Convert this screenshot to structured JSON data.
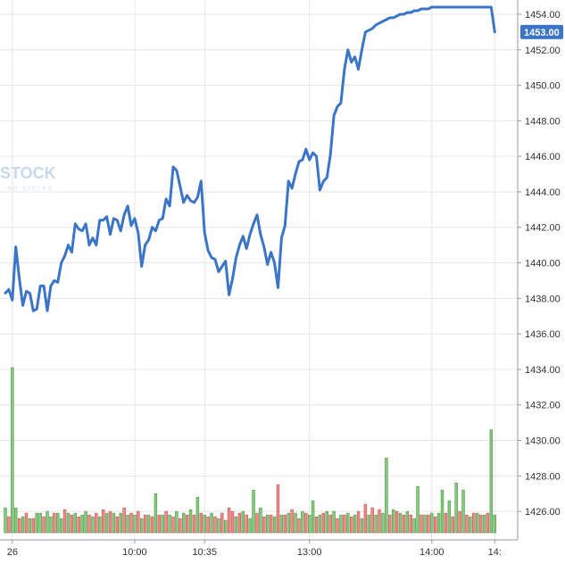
{
  "watermark": {
    "brand": "STOCK",
    "tagline": "ah stocks"
  },
  "colors": {
    "price_line": "#3a75c8",
    "volume_up": "#86c97c",
    "volume_up_edge": "#4c9a46",
    "volume_down": "#ef8a8a",
    "volume_down_edge": "#c84e4e",
    "grid": "#e6e6e6",
    "axis_text": "#333333",
    "price_tag_bg": "#3a75c8",
    "price_tag_text": "#ffffff"
  },
  "chart_data": {
    "type": "line",
    "title": "",
    "xlabel": "",
    "ylabel": "",
    "ylim": [
      1424.8,
      1454.4
    ],
    "grid": true,
    "price_axis_side": "right",
    "y_ticks": [
      "1454.00",
      "1452.00",
      "1450.00",
      "1448.00",
      "1446.00",
      "1444.00",
      "1442.00",
      "1440.00",
      "1438.00",
      "1436.00",
      "1434.00",
      "1432.00",
      "1430.00",
      "1428.00",
      "1426.00"
    ],
    "x_ticks": [
      {
        "label": "26",
        "x": 0
      },
      {
        "label": "10:00",
        "x": 35
      },
      {
        "label": "10:35",
        "x": 55
      },
      {
        "label": "13:00",
        "x": 85
      },
      {
        "label": "14:00",
        "x": 120
      },
      {
        "label": "14:",
        "x": 138
      }
    ],
    "x_range": [
      -2,
      141
    ],
    "current_price": "1453.00",
    "series": [
      {
        "type": "line",
        "x": [
          -2,
          -1,
          0,
          1,
          2,
          3,
          4,
          5,
          6,
          7,
          8,
          9,
          10,
          11,
          12,
          13,
          14,
          15,
          16,
          17,
          18,
          19,
          20,
          21,
          22,
          23,
          24,
          25,
          26,
          27,
          28,
          29,
          30,
          31,
          32,
          33,
          34,
          35,
          36,
          37,
          38,
          39,
          40,
          41,
          42,
          43,
          44,
          45,
          46,
          47,
          48,
          49,
          50,
          51,
          52,
          53,
          54,
          55,
          56,
          57,
          58,
          59,
          60,
          61,
          62,
          63,
          64,
          65,
          66,
          67,
          68,
          69,
          70,
          71,
          72,
          73,
          74,
          75,
          76,
          77,
          78,
          79,
          80,
          81,
          82,
          83,
          84,
          85,
          86,
          87,
          88,
          89,
          90,
          91,
          92,
          93,
          94,
          95,
          96,
          97,
          98,
          99,
          100,
          101,
          102,
          103,
          104,
          105,
          106,
          107,
          108,
          109,
          110,
          111,
          112,
          113,
          114,
          115,
          116,
          117,
          118,
          119,
          120,
          121,
          122,
          123,
          124,
          125,
          126,
          127,
          128,
          129,
          130,
          131,
          132,
          133,
          134,
          135,
          136,
          137,
          138
        ],
        "values": [
          1438.3,
          1438.5,
          1437.9,
          1440.9,
          1439.1,
          1437.6,
          1438.4,
          1438.3,
          1437.3,
          1437.4,
          1438.7,
          1438.7,
          1437.3,
          1438.7,
          1439.0,
          1438.9,
          1440.0,
          1440.4,
          1441.0,
          1440.6,
          1442.2,
          1441.9,
          1441.8,
          1442.2,
          1441.0,
          1441.4,
          1441.0,
          1442.4,
          1442.4,
          1442.6,
          1441.6,
          1442.5,
          1442.4,
          1441.8,
          1442.7,
          1443.2,
          1442.1,
          1442.5,
          1441.7,
          1439.8,
          1441.0,
          1441.3,
          1442.0,
          1441.8,
          1442.4,
          1442.5,
          1443.6,
          1443.2,
          1445.4,
          1445.2,
          1444.3,
          1443.4,
          1443.8,
          1443.5,
          1443.4,
          1443.7,
          1444.6,
          1441.7,
          1440.7,
          1440.3,
          1440.2,
          1439.5,
          1439.8,
          1440.1,
          1438.2,
          1439.1,
          1440.3,
          1441.0,
          1441.5,
          1440.8,
          1441.6,
          1442.2,
          1442.7,
          1441.6,
          1440.9,
          1439.9,
          1440.6,
          1440.0,
          1438.6,
          1441.4,
          1442.1,
          1444.6,
          1444.2,
          1445.0,
          1445.7,
          1445.8,
          1446.4,
          1445.8,
          1446.2,
          1446.0,
          1444.1,
          1444.6,
          1444.8,
          1446.1,
          1448.3,
          1448.8,
          1449.0,
          1450.9,
          1452.0,
          1451.3,
          1451.6,
          1450.9,
          1452.0,
          1453.0,
          1453.1,
          1453.2,
          1453.4,
          1453.5,
          1453.6,
          1453.7,
          1453.8,
          1453.8,
          1453.9,
          1454.0,
          1454.0,
          1454.1,
          1454.1,
          1454.2,
          1454.2,
          1454.3,
          1454.3,
          1454.3,
          1454.4,
          1454.4,
          1454.4,
          1454.4,
          1454.4,
          1454.4,
          1454.4,
          1454.4,
          1454.4,
          1454.4,
          1454.4,
          1454.4,
          1454.4,
          1454.4,
          1454.4,
          1454.4,
          1454.4,
          1454.4,
          1453.0
        ]
      },
      {
        "type": "bar",
        "x": [
          -2,
          -1,
          0,
          1,
          2,
          3,
          4,
          5,
          6,
          7,
          8,
          9,
          10,
          11,
          12,
          13,
          14,
          15,
          16,
          17,
          18,
          19,
          20,
          21,
          22,
          23,
          24,
          25,
          26,
          27,
          28,
          29,
          30,
          31,
          32,
          33,
          34,
          35,
          36,
          37,
          38,
          39,
          40,
          41,
          42,
          43,
          44,
          45,
          46,
          47,
          48,
          49,
          50,
          51,
          52,
          53,
          54,
          55,
          56,
          57,
          58,
          59,
          60,
          61,
          62,
          63,
          64,
          65,
          66,
          67,
          68,
          69,
          70,
          71,
          72,
          73,
          74,
          75,
          76,
          77,
          78,
          79,
          80,
          81,
          82,
          83,
          84,
          85,
          86,
          87,
          88,
          89,
          90,
          91,
          92,
          93,
          94,
          95,
          96,
          97,
          98,
          99,
          100,
          101,
          102,
          103,
          104,
          105,
          106,
          107,
          108,
          109,
          110,
          111,
          112,
          113,
          114,
          115,
          116,
          117,
          118,
          119,
          120,
          121,
          122,
          123,
          124,
          125,
          126,
          127,
          128,
          129,
          130,
          131,
          132,
          133,
          134,
          135,
          136,
          137,
          138
        ],
        "values": [
          1426.2,
          1425.7,
          1434.1,
          1426.2,
          1425.6,
          1425.7,
          1425.9,
          1425.6,
          1425.6,
          1425.9,
          1425.9,
          1425.7,
          1426.0,
          1425.7,
          1425.9,
          1425.9,
          1425.6,
          1426.1,
          1425.9,
          1425.8,
          1425.9,
          1425.7,
          1425.8,
          1426.0,
          1425.8,
          1425.7,
          1425.9,
          1425.7,
          1426.1,
          1425.9,
          1426.0,
          1425.9,
          1425.7,
          1425.9,
          1426.2,
          1425.8,
          1425.9,
          1425.8,
          1426.0,
          1425.6,
          1425.8,
          1425.8,
          1425.7,
          1427.0,
          1425.8,
          1425.8,
          1426.0,
          1425.8,
          1425.7,
          1426.0,
          1425.6,
          1425.9,
          1425.8,
          1426.1,
          1425.8,
          1426.8,
          1425.9,
          1425.8,
          1425.7,
          1425.9,
          1425.7,
          1425.6,
          1425.9,
          1425.5,
          1426.2,
          1426.0,
          1425.7,
          1425.9,
          1426.0,
          1425.8,
          1425.6,
          1427.2,
          1425.9,
          1426.2,
          1425.7,
          1425.8,
          1425.8,
          1425.7,
          1427.5,
          1425.8,
          1425.8,
          1425.9,
          1426.1,
          1425.9,
          1425.6,
          1426.0,
          1425.9,
          1425.8,
          1426.6,
          1425.7,
          1425.8,
          1425.9,
          1426.0,
          1425.8,
          1426.0,
          1425.6,
          1425.8,
          1425.8,
          1425.9,
          1425.7,
          1425.8,
          1426.0,
          1425.6,
          1426.4,
          1425.8,
          1426.2,
          1425.8,
          1426.1,
          1425.9,
          1429.0,
          1425.8,
          1426.1,
          1426.0,
          1425.9,
          1425.8,
          1426.0,
          1425.8,
          1425.6,
          1427.4,
          1425.8,
          1425.8,
          1425.8,
          1425.9,
          1425.7,
          1425.9,
          1427.2,
          1425.9,
          1426.6,
          1425.7,
          1427.6,
          1426.0,
          1427.2,
          1425.8,
          1425.7,
          1425.9,
          1425.9,
          1425.8,
          1425.8,
          1425.9,
          1430.6,
          1425.8
        ],
        "direction": [
          "up",
          "down",
          "up",
          "up",
          "down",
          "up",
          "down",
          "up",
          "down",
          "up",
          "up",
          "down",
          "up",
          "up",
          "down",
          "up",
          "up",
          "down",
          "up",
          "down",
          "up",
          "down",
          "up",
          "up",
          "down",
          "up",
          "down",
          "up",
          "down",
          "up",
          "down",
          "up",
          "down",
          "up",
          "down",
          "up",
          "down",
          "up",
          "down",
          "up",
          "down",
          "up",
          "down",
          "up",
          "down",
          "up",
          "down",
          "up",
          "down",
          "up",
          "down",
          "up",
          "down",
          "up",
          "down",
          "up",
          "down",
          "up",
          "down",
          "up",
          "down",
          "up",
          "down",
          "up",
          "down",
          "down",
          "up",
          "down",
          "up",
          "down",
          "up",
          "up",
          "down",
          "up",
          "down",
          "up",
          "down",
          "up",
          "down",
          "up",
          "down",
          "up",
          "down",
          "up",
          "down",
          "up",
          "down",
          "up",
          "up",
          "down",
          "up",
          "down",
          "up",
          "down",
          "up",
          "down",
          "up",
          "down",
          "up",
          "down",
          "up",
          "down",
          "up",
          "down",
          "up",
          "down",
          "up",
          "down",
          "up",
          "up",
          "down",
          "up",
          "down",
          "up",
          "down",
          "up",
          "down",
          "up",
          "up",
          "down",
          "up",
          "down",
          "up",
          "down",
          "up",
          "up",
          "down",
          "up",
          "down",
          "up",
          "down",
          "up",
          "down",
          "up",
          "down",
          "up",
          "down",
          "up",
          "down",
          "up",
          "up"
        ]
      }
    ]
  }
}
